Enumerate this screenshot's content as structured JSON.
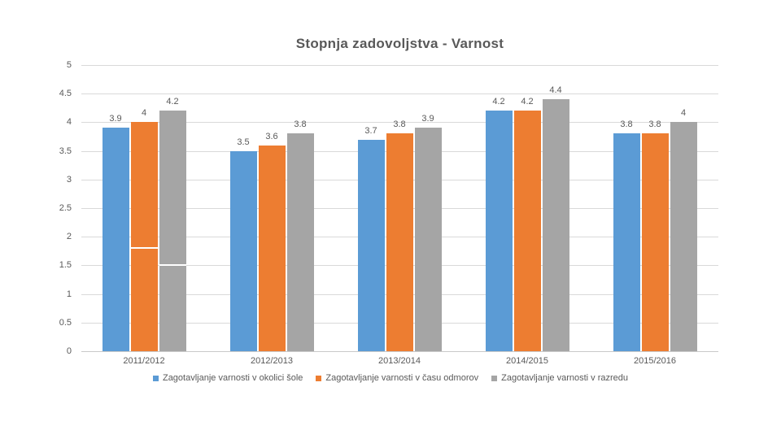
{
  "chart_data": {
    "type": "bar",
    "title": "Stopnja zadovoljstva - Varnost",
    "categories": [
      "2011/2012",
      "2012/2013",
      "2013/2014",
      "2014/2015",
      "2015/2016"
    ],
    "series": [
      {
        "name": "Zagotavljanje varnosti v okolici šole",
        "color": "#5B9BD5",
        "values": [
          3.9,
          3.5,
          3.7,
          4.2,
          3.8
        ]
      },
      {
        "name": "Zagotavljanje varnosti v času odmorov",
        "color": "#ED7D31",
        "values": [
          4,
          3.6,
          3.8,
          4.2,
          3.8
        ]
      },
      {
        "name": "Zagotavljanje varnosti v razredu",
        "color": "#A5A5A5",
        "values": [
          4.2,
          3.8,
          3.9,
          4.4,
          4
        ]
      }
    ],
    "ylim": [
      0,
      5
    ],
    "ytick_step": 0.5,
    "yticks": [
      "0",
      "0.5",
      "1",
      "1.5",
      "2",
      "2.5",
      "3",
      "3.5",
      "4",
      "4.5",
      "5"
    ],
    "grid": true,
    "data_labels": true,
    "legend_position": "bottom",
    "text_color": "#595959",
    "gridline_color": "#D9D9D9",
    "background_color": "#FFFFFF",
    "bar_overlay_marks": [
      {
        "category_index": 0,
        "series_index": 1,
        "value": 1.8
      },
      {
        "category_index": 0,
        "series_index": 2,
        "value": 1.5
      }
    ]
  }
}
